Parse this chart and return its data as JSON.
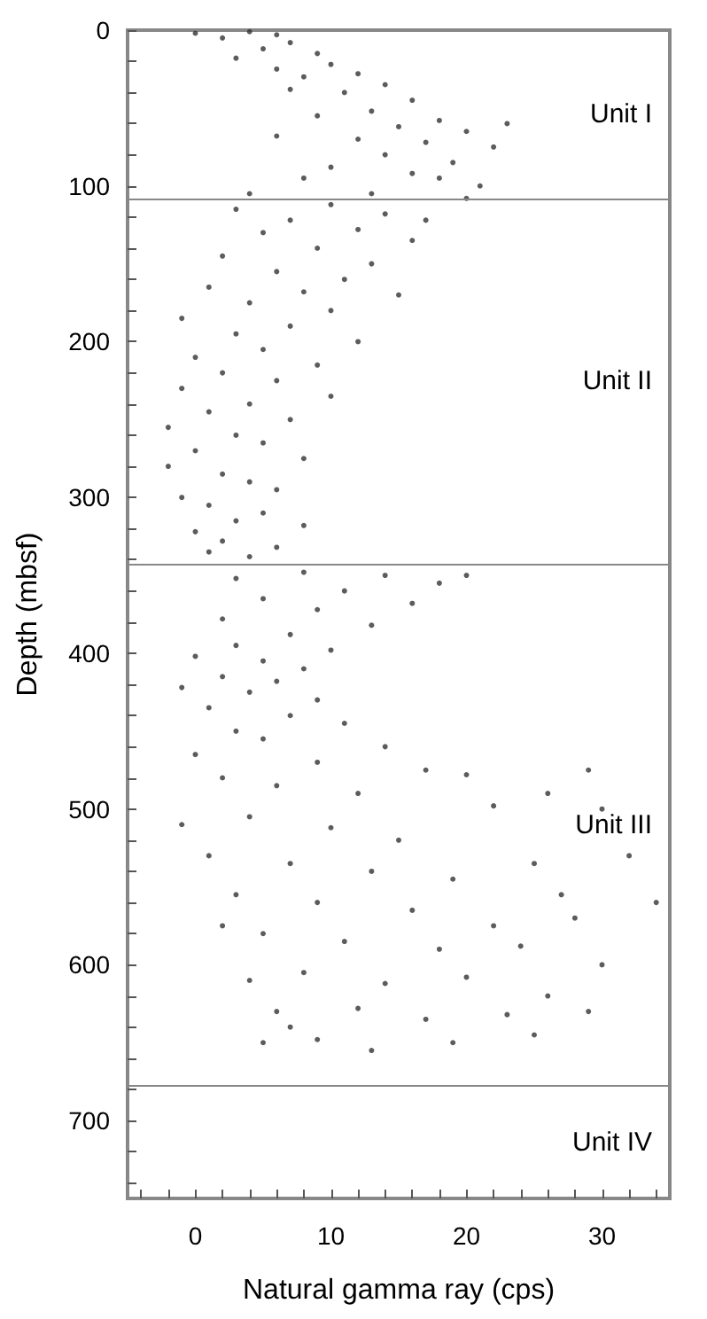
{
  "chart_data": {
    "type": "scatter",
    "xlabel": "Natural gamma ray (cps)",
    "ylabel": "Depth (mbsf)",
    "xlim": [
      -5,
      35
    ],
    "ylim": [
      750,
      0
    ],
    "xticks": [
      {
        "value": -4,
        "label": null
      },
      {
        "value": -2,
        "label": null
      },
      0,
      {
        "value": 2,
        "label": null
      },
      {
        "value": 4,
        "label": null
      },
      {
        "value": 6,
        "label": null
      },
      {
        "value": 8,
        "label": null
      },
      10,
      {
        "value": 12,
        "label": null
      },
      {
        "value": 14,
        "label": null
      },
      {
        "value": 16,
        "label": null
      },
      {
        "value": 18,
        "label": null
      },
      20,
      {
        "value": 22,
        "label": null
      },
      {
        "value": 24,
        "label": null
      },
      {
        "value": 26,
        "label": null
      },
      {
        "value": 28,
        "label": null
      },
      30,
      {
        "value": 32,
        "label": null
      },
      {
        "value": 34,
        "label": null
      }
    ],
    "yticks": [
      0,
      {
        "value": 20,
        "label": null
      },
      {
        "value": 40,
        "label": null
      },
      {
        "value": 60,
        "label": null
      },
      {
        "value": 80,
        "label": null
      },
      100,
      {
        "value": 120,
        "label": null
      },
      {
        "value": 140,
        "label": null
      },
      {
        "value": 160,
        "label": null
      },
      {
        "value": 180,
        "label": null
      },
      200,
      {
        "value": 220,
        "label": null
      },
      {
        "value": 240,
        "label": null
      },
      {
        "value": 260,
        "label": null
      },
      {
        "value": 280,
        "label": null
      },
      300,
      {
        "value": 320,
        "label": null
      },
      {
        "value": 340,
        "label": null
      },
      {
        "value": 360,
        "label": null
      },
      {
        "value": 380,
        "label": null
      },
      400,
      {
        "value": 420,
        "label": null
      },
      {
        "value": 440,
        "label": null
      },
      {
        "value": 460,
        "label": null
      },
      {
        "value": 480,
        "label": null
      },
      500,
      {
        "value": 520,
        "label": null
      },
      {
        "value": 540,
        "label": null
      },
      {
        "value": 560,
        "label": null
      },
      {
        "value": 580,
        "label": null
      },
      600,
      {
        "value": 620,
        "label": null
      },
      {
        "value": 640,
        "label": null
      },
      {
        "value": 660,
        "label": null
      },
      {
        "value": 680,
        "label": null
      },
      700,
      {
        "value": 720,
        "label": null
      },
      {
        "value": 740,
        "label": null
      }
    ],
    "grid": false,
    "marker": "circle",
    "ref_lines": [
      {
        "axis": "y",
        "value": 108,
        "color": "#888888"
      },
      {
        "axis": "y",
        "value": 343,
        "color": "#888888"
      },
      {
        "axis": "y",
        "value": 678,
        "color": "#888888"
      }
    ],
    "annotations": [
      "Unit I",
      "Unit II",
      "Unit III",
      "Unit IV"
    ],
    "series": [
      {
        "color": "#333333",
        "x": [
          0,
          2,
          4,
          6,
          7,
          5,
          9,
          3,
          6,
          10,
          12,
          8,
          14,
          11,
          16,
          7,
          13,
          18,
          9,
          15,
          20,
          12,
          17,
          6,
          22,
          14,
          19,
          10,
          16,
          8,
          21,
          13,
          4,
          23,
          18,
          10,
          3,
          14,
          7,
          12,
          5,
          16,
          9,
          2,
          13,
          6,
          11,
          1,
          8,
          15,
          4,
          10,
          -1,
          7,
          3,
          12,
          5,
          0,
          9,
          2,
          6,
          -1,
          10,
          4,
          1,
          7,
          -2,
          3,
          5,
          0,
          8,
          -2,
          2,
          4,
          6,
          -1,
          1,
          5,
          3,
          8,
          0,
          2,
          6,
          4,
          1,
          20,
          17,
          8,
          14,
          3,
          18,
          11,
          5,
          16,
          9,
          2,
          13,
          7,
          20,
          3,
          10,
          0,
          5,
          8,
          2,
          6,
          -1,
          4,
          9,
          1,
          7,
          11,
          3,
          5,
          14,
          0,
          9,
          17,
          2,
          6,
          12,
          20,
          29,
          26,
          -1,
          4,
          10,
          15,
          22,
          30,
          1,
          7,
          13,
          19,
          25,
          3,
          9,
          16,
          22,
          28,
          34,
          5,
          11,
          18,
          24,
          30,
          4,
          8,
          14,
          20,
          26,
          6,
          12,
          17,
          23,
          29,
          5,
          9,
          13,
          19,
          25,
          7,
          2,
          27,
          32
        ],
        "values": [
          2,
          5,
          1,
          3,
          8,
          12,
          15,
          18,
          25,
          22,
          28,
          30,
          35,
          40,
          45,
          38,
          52,
          58,
          55,
          62,
          65,
          70,
          72,
          68,
          75,
          80,
          85,
          88,
          92,
          95,
          100,
          105,
          105,
          60,
          95,
          112,
          115,
          118,
          122,
          128,
          130,
          135,
          140,
          145,
          150,
          155,
          160,
          165,
          168,
          170,
          175,
          180,
          185,
          190,
          195,
          200,
          205,
          210,
          215,
          220,
          225,
          230,
          235,
          240,
          245,
          250,
          255,
          260,
          265,
          270,
          275,
          280,
          285,
          290,
          295,
          300,
          305,
          310,
          315,
          318,
          322,
          328,
          332,
          338,
          335,
          108,
          122,
          348,
          350,
          352,
          355,
          360,
          365,
          368,
          372,
          378,
          382,
          388,
          350,
          395,
          398,
          402,
          405,
          410,
          415,
          418,
          422,
          425,
          430,
          435,
          440,
          445,
          450,
          455,
          460,
          465,
          470,
          475,
          480,
          485,
          490,
          478,
          475,
          490,
          510,
          505,
          512,
          520,
          498,
          500,
          530,
          535,
          540,
          545,
          535,
          555,
          560,
          565,
          575,
          570,
          560,
          580,
          585,
          590,
          588,
          600,
          610,
          605,
          612,
          608,
          620,
          630,
          628,
          635,
          632,
          630,
          650,
          648,
          655,
          650,
          645,
          640,
          575,
          555,
          530
        ]
      }
    ]
  }
}
